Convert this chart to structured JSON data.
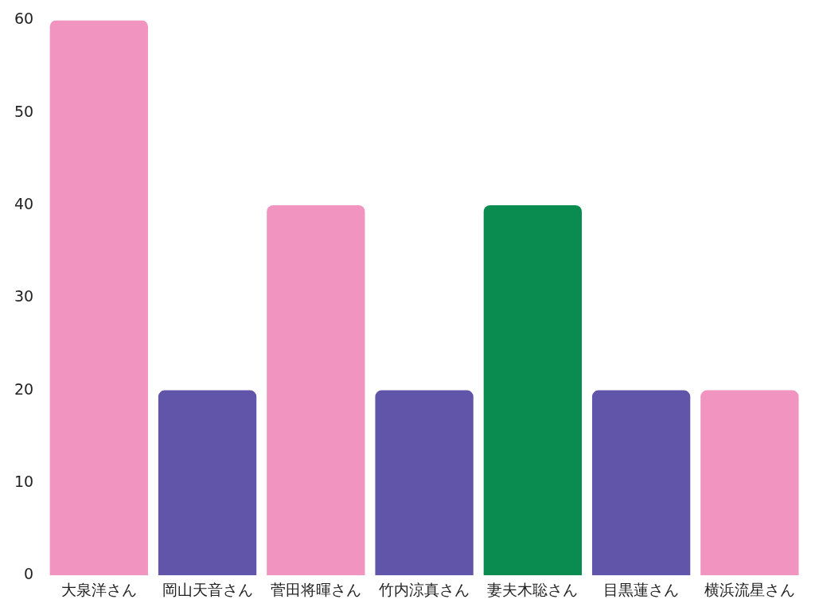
{
  "chart_data": {
    "type": "bar",
    "categories": [
      "大泉洋さん",
      "岡山天音さん",
      "菅田将暉さん",
      "竹内涼真さん",
      "妻夫木聡さん",
      "目黒蓮さん",
      "横浜流星さん"
    ],
    "values": [
      60,
      20,
      40,
      20,
      40,
      20,
      20
    ],
    "colors": [
      "#f194c0",
      "#6155a9",
      "#f194c0",
      "#6155a9",
      "#0a8c50",
      "#6155a9",
      "#f194c0"
    ],
    "ylim": [
      0,
      60
    ],
    "yticks": [
      0,
      10,
      20,
      30,
      40,
      50,
      60
    ],
    "grid": false
  }
}
